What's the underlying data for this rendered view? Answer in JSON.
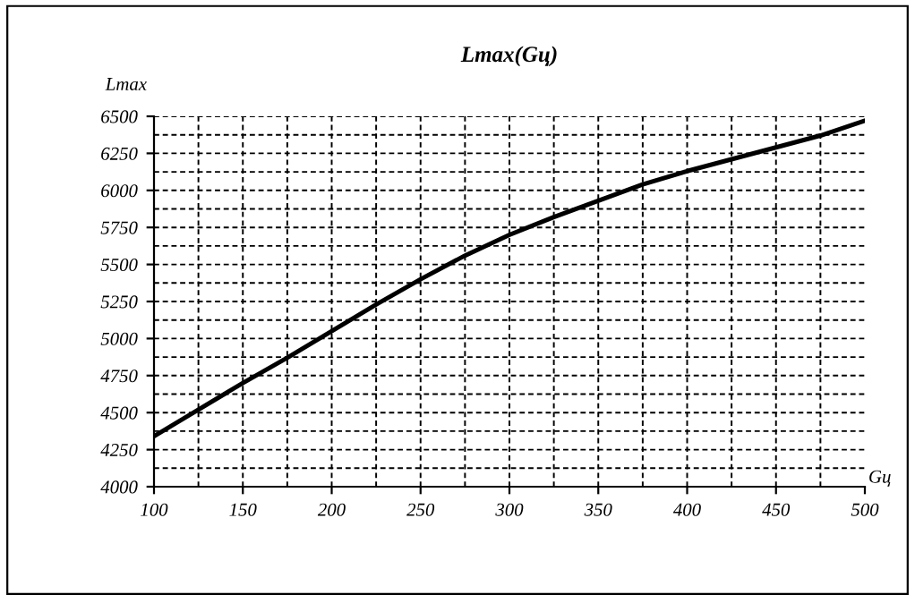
{
  "chart_data": {
    "type": "line",
    "title": "Lmax(Gц)",
    "xlabel": "Gц",
    "ylabel": "Lmax",
    "x": [
      100,
      125,
      150,
      175,
      200,
      225,
      250,
      275,
      300,
      325,
      350,
      375,
      400,
      425,
      450,
      475,
      500
    ],
    "series": [
      {
        "color": "#000000",
        "values": [
          4340,
          4520,
          4700,
          4870,
          5050,
          5230,
          5400,
          5560,
          5700,
          5820,
          5930,
          6040,
          6130,
          6210,
          6290,
          6370,
          6470
        ]
      }
    ],
    "xlim": [
      100,
      500
    ],
    "ylim": [
      4000,
      6500
    ],
    "xticks": [
      100,
      150,
      200,
      250,
      300,
      350,
      400,
      450,
      500
    ],
    "yticks": [
      4000,
      4250,
      4500,
      4750,
      5000,
      5250,
      5500,
      5750,
      6000,
      6250,
      6500
    ],
    "grid": true,
    "legend": false,
    "marker": "none",
    "line_style": "solid"
  }
}
